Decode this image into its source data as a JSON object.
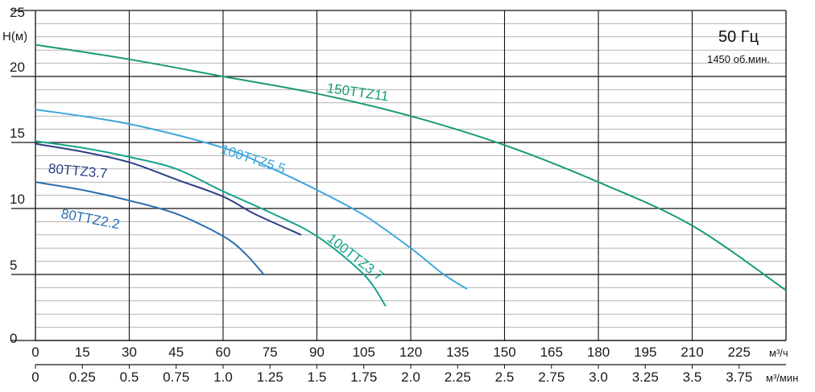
{
  "chart_data": {
    "type": "line",
    "ylabel": "H(м)",
    "ylim": [
      0,
      25
    ],
    "xlim": [
      0,
      240
    ],
    "x_unit": "м³/ч",
    "x2_unit": "м³/мин",
    "yticks": [
      0,
      5,
      10,
      15,
      20,
      25
    ],
    "xticks": [
      "0",
      "15",
      "30",
      "45",
      "60",
      "75",
      "90",
      "105",
      "120",
      "135",
      "150",
      "165",
      "180",
      "195",
      "210",
      "225"
    ],
    "xticks_min": [
      "0",
      "0.25",
      "0.5",
      "0.75",
      "1.0",
      "1.25",
      "1.5",
      "1.75",
      "2.0",
      "2.25",
      "2.5",
      "2.75",
      "3.0",
      "3.25",
      "3.5",
      "3.75"
    ],
    "annotations": {
      "frequency": "50 Гц",
      "speed": "1450 об.мин."
    },
    "grid": true,
    "series": [
      {
        "name": "150TTZ11",
        "color": "#1a9a72",
        "x": [
          0,
          30,
          60,
          90,
          120,
          150,
          180,
          210,
          240
        ],
        "y": [
          22.4,
          21.3,
          20.0,
          18.7,
          17.0,
          14.8,
          12.0,
          8.7,
          3.8
        ]
      },
      {
        "name": "100TTZ5.5",
        "color": "#3fa7dc",
        "x": [
          0,
          30,
          60,
          75,
          90,
          105,
          120,
          130,
          138
        ],
        "y": [
          17.5,
          16.4,
          14.6,
          13.1,
          11.4,
          9.5,
          7.0,
          5.1,
          3.9
        ]
      },
      {
        "name": "100TTZ3.7",
        "color": "#16a38c",
        "x": [
          0,
          15,
          30,
          45,
          60,
          75,
          90,
          105,
          112
        ],
        "y": [
          15.1,
          14.6,
          13.9,
          13.0,
          11.3,
          9.7,
          7.9,
          5.0,
          2.6
        ]
      },
      {
        "name": "80TTZ3.7",
        "color": "#2e3f86",
        "x": [
          0,
          15,
          30,
          45,
          60,
          70,
          85
        ],
        "y": [
          14.9,
          14.3,
          13.5,
          12.2,
          10.9,
          9.6,
          8.0
        ]
      },
      {
        "name": "80TTZ2.2",
        "color": "#2b6fae",
        "x": [
          0,
          15,
          30,
          45,
          60,
          67,
          73
        ],
        "y": [
          12.0,
          11.4,
          10.6,
          9.6,
          7.9,
          6.6,
          5.0
        ]
      }
    ]
  }
}
